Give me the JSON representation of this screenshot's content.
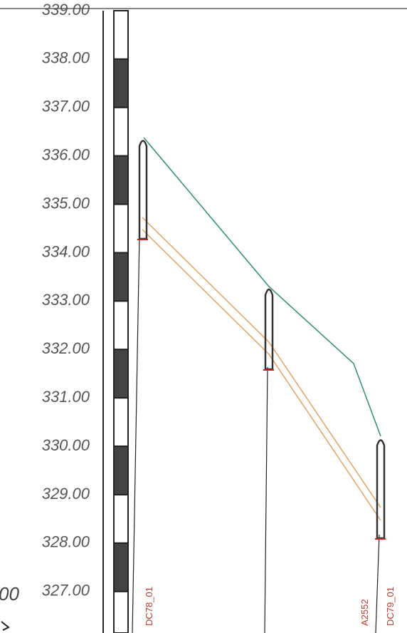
{
  "scale": {
    "labels": [
      "339.00",
      "338.00",
      "337.00",
      "336.00",
      "335.00",
      "334.00",
      "333.00",
      "332.00",
      "331.00",
      "330.00",
      "329.00",
      "328.00",
      "327.00"
    ]
  },
  "nodes": [
    {
      "label": "DC78_01"
    },
    {
      "label": "A2552"
    },
    {
      "label": "DC79_01"
    }
  ],
  "fragment": "00"
}
